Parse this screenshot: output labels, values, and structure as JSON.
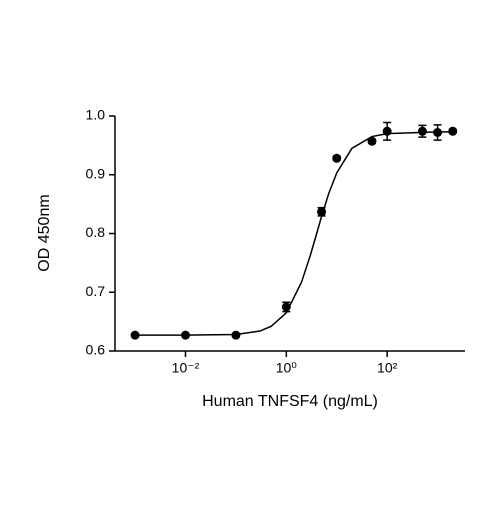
{
  "chart_data": {
    "type": "scatter",
    "xlabel": "Human TNFSF4 (ng/mL)",
    "ylabel": "OD 450nm",
    "xscale": "log",
    "color": "#000000",
    "x": [
      0.001,
      0.01,
      0.1,
      1,
      5,
      10,
      50,
      100,
      500,
      1000,
      2000
    ],
    "values": [
      0.627,
      0.627,
      0.627,
      0.675,
      0.837,
      0.928,
      0.957,
      0.974,
      0.974,
      0.972,
      0.974
    ],
    "errors": [
      0,
      0,
      0,
      0.008,
      0.007,
      0.003,
      0.003,
      0.015,
      0.01,
      0.013,
      0.003
    ],
    "fit": {
      "x": [
        0.001,
        0.01,
        0.1,
        0.3,
        0.5,
        1,
        2,
        3,
        4,
        5,
        7,
        10,
        20,
        50,
        100,
        1000,
        2000
      ],
      "values": [
        0.627,
        0.627,
        0.628,
        0.634,
        0.642,
        0.665,
        0.717,
        0.763,
        0.8,
        0.829,
        0.869,
        0.903,
        0.945,
        0.965,
        0.97,
        0.973,
        0.973
      ]
    },
    "xlim": [
      0.0004,
      3500
    ],
    "ylim": [
      0.6,
      1
    ],
    "xticks": [
      {
        "value": 0.01,
        "label": "10⁻²"
      },
      {
        "value": 1,
        "label": "10⁰"
      },
      {
        "value": 100,
        "label": "10²"
      }
    ],
    "yticks": [
      0.6,
      0.7,
      0.8,
      0.9,
      {
        "value": 1,
        "label": "1.0"
      }
    ]
  }
}
